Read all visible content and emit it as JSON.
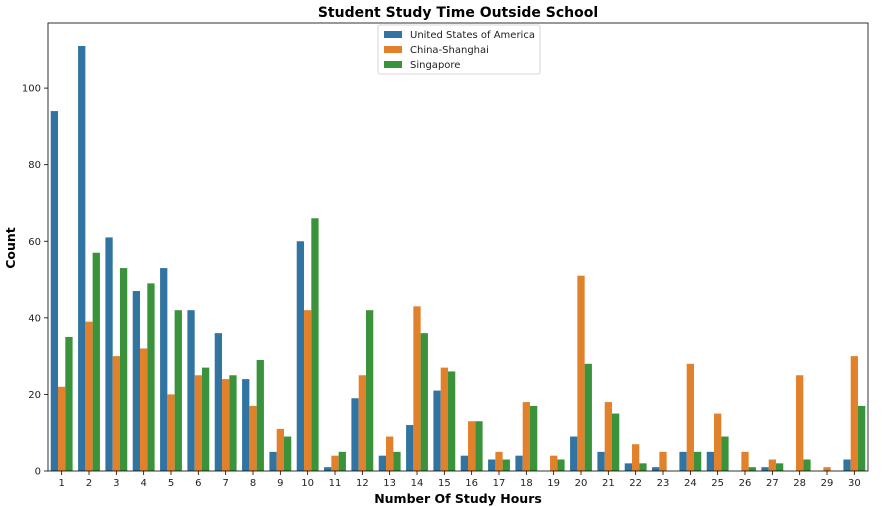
{
  "chart_data": {
    "type": "bar",
    "title": "Student Study Time Outside School",
    "xlabel": "Number Of Study Hours",
    "ylabel": "Count",
    "ylim": [
      0,
      117
    ],
    "yticks": [
      0,
      20,
      40,
      60,
      80,
      100
    ],
    "grid": false,
    "legend_position": "top-center",
    "categories": [
      "1",
      "2",
      "3",
      "4",
      "5",
      "6",
      "7",
      "8",
      "9",
      "10",
      "11",
      "12",
      "13",
      "14",
      "15",
      "16",
      "17",
      "18",
      "19",
      "20",
      "21",
      "22",
      "23",
      "24",
      "25",
      "26",
      "27",
      "28",
      "29",
      "30"
    ],
    "series": [
      {
        "name": "United States of America",
        "color": "#3274a1",
        "values": [
          94,
          111,
          61,
          47,
          53,
          42,
          36,
          24,
          5,
          60,
          1,
          19,
          4,
          12,
          21,
          4,
          3,
          4,
          0,
          9,
          5,
          2,
          1,
          5,
          5,
          0,
          1,
          0,
          0,
          3
        ]
      },
      {
        "name": "China-Shanghai",
        "color": "#e1812c",
        "values": [
          22,
          39,
          30,
          32,
          20,
          25,
          24,
          17,
          11,
          42,
          4,
          25,
          9,
          43,
          27,
          13,
          5,
          18,
          4,
          51,
          18,
          7,
          5,
          28,
          15,
          5,
          3,
          25,
          1,
          30
        ]
      },
      {
        "name": "Singapore",
        "color": "#3a923a",
        "values": [
          35,
          57,
          53,
          49,
          42,
          27,
          25,
          29,
          9,
          66,
          5,
          42,
          5,
          36,
          26,
          13,
          3,
          17,
          3,
          28,
          15,
          2,
          0,
          5,
          9,
          1,
          2,
          3,
          0,
          17
        ]
      }
    ]
  }
}
